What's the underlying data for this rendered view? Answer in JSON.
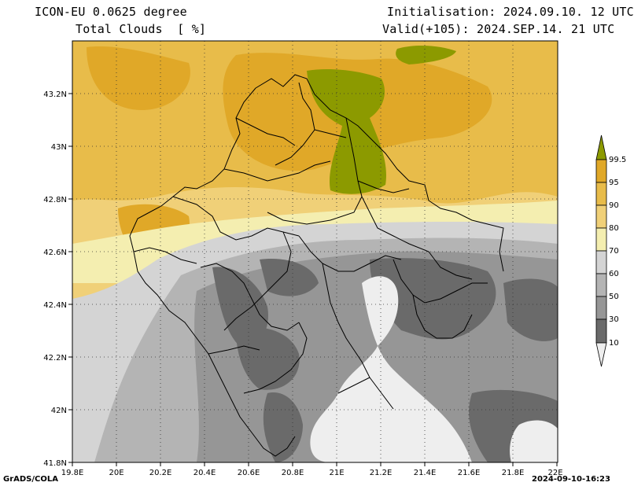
{
  "header": {
    "model": "ICON-EU 0.0625 degree",
    "field": "Total Clouds  [ %]",
    "init": "Initialisation: 2024.09.10. 12 UTC",
    "valid": "Valid(+105): 2024.SEP.14. 21 UTC"
  },
  "axes": {
    "lon_ticks": [
      "19.8E",
      "20E",
      "20.2E",
      "20.4E",
      "20.6E",
      "20.8E",
      "21E",
      "21.2E",
      "21.4E",
      "21.6E",
      "21.8E",
      "22E"
    ],
    "lat_ticks": [
      "41.8N",
      "42N",
      "42.2N",
      "42.4N",
      "42.6N",
      "42.8N",
      "43N",
      "43.2N"
    ],
    "lon_range": [
      19.8,
      22.0
    ],
    "lat_range": [
      41.8,
      43.4
    ]
  },
  "colorbar": {
    "labels": [
      "99.5",
      "95",
      "90",
      "80",
      "70",
      "60",
      "50",
      "30",
      "10"
    ],
    "colors": [
      "#8c9a00",
      "#e0a828",
      "#e8bc4a",
      "#f0d078",
      "#f4eeb0",
      "#d4d4d4",
      "#b4b4b4",
      "#969696",
      "#6a6a6a",
      "#eeeeee"
    ]
  },
  "footer": {
    "left": "GrADS/COLA",
    "right": "2024-09-10-16:23"
  }
}
